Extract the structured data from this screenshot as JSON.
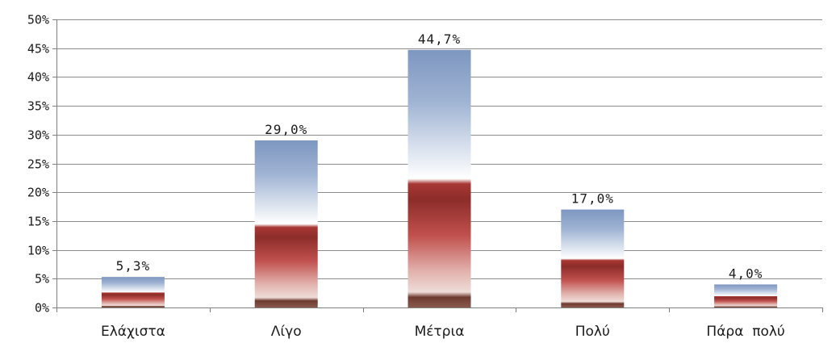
{
  "chart_data": {
    "type": "bar",
    "title": "",
    "xlabel": "",
    "ylabel": "",
    "categories": [
      "Ελάχιστα",
      "Λίγο",
      "Μέτρια",
      "Πολύ",
      "Πάρα  πολύ"
    ],
    "values": [
      5.3,
      29.0,
      44.7,
      17.0,
      4.0
    ],
    "data_labels": [
      "5,3%",
      "29,0%",
      "44,7%",
      "17,0%",
      "4,0%"
    ],
    "y_ticks": [
      "0%",
      "5%",
      "10%",
      "15%",
      "20%",
      "25%",
      "30%",
      "35%",
      "40%",
      "45%",
      "50%"
    ],
    "ylim": [
      0,
      50
    ],
    "y_unit": "%",
    "grid": true,
    "legend": "none",
    "colors": {
      "grid": "#8c8c8c",
      "axis": "#7f7f7f",
      "bar_top": "#7e97c0",
      "bar_mid": "#ffffff",
      "bar_red": "#c0504d",
      "bar_red_dark": "#8c2d2a",
      "bar_base": "#6e3a30"
    }
  }
}
